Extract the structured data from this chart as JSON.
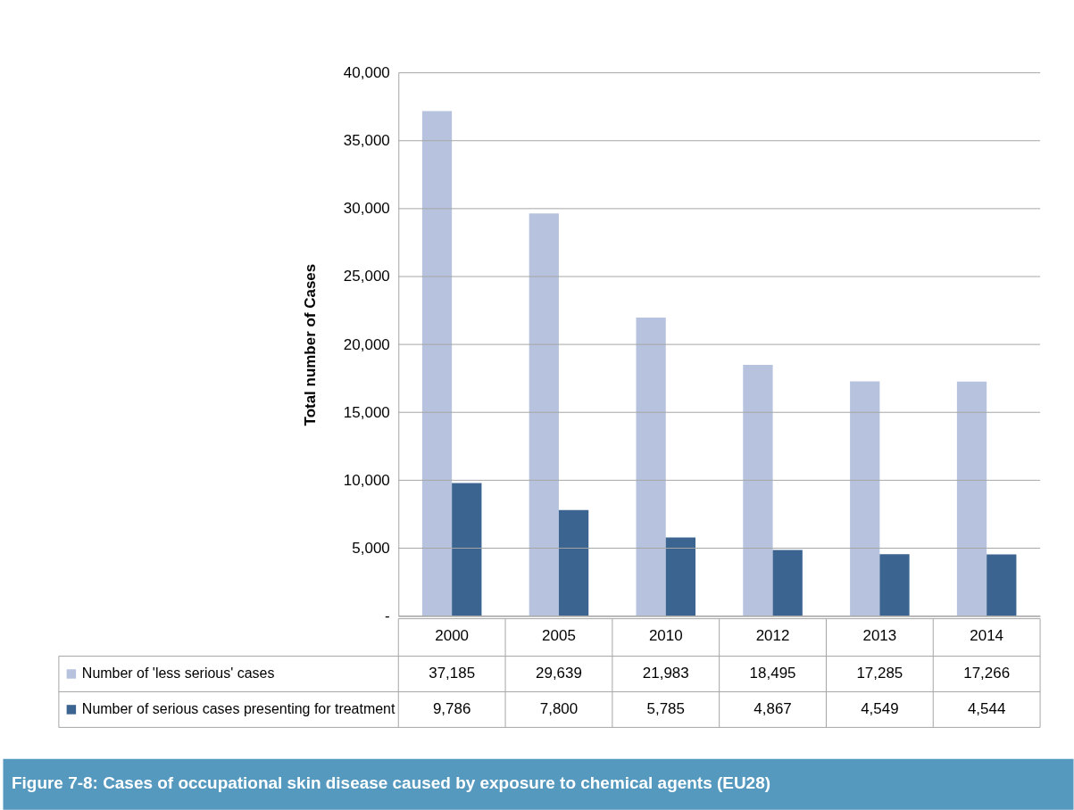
{
  "chart_data": {
    "type": "bar",
    "title": "Figure 7-8: Cases of occupational skin disease caused by exposure to chemical agents (EU28)",
    "ylabel": "Total number of Cases",
    "categories": [
      "2000",
      "2005",
      "2010",
      "2012",
      "2013",
      "2014"
    ],
    "series": [
      {
        "name": "Number of 'less serious' cases",
        "color": "#b7c3de",
        "values": [
          37185,
          29639,
          21983,
          18495,
          17285,
          17266
        ],
        "value_labels": [
          "37,185",
          "29,639",
          "21,983",
          "18,495",
          "17,285",
          "17,266"
        ]
      },
      {
        "name": "Number of serious cases presenting for treatment",
        "color": "#3b6491",
        "values": [
          9786,
          7800,
          5785,
          4867,
          4549,
          4544
        ],
        "value_labels": [
          "9,786",
          "7,800",
          "5,785",
          "4,867",
          "4,549",
          "4,544"
        ]
      }
    ],
    "ylim": [
      0,
      40000
    ],
    "yticks": [
      {
        "value": 0,
        "label": "-"
      },
      {
        "value": 5000,
        "label": "5,000"
      },
      {
        "value": 10000,
        "label": "10,000"
      },
      {
        "value": 15000,
        "label": "15,000"
      },
      {
        "value": 20000,
        "label": "20,000"
      },
      {
        "value": 25000,
        "label": "25,000"
      },
      {
        "value": 30000,
        "label": "30,000"
      },
      {
        "value": 35000,
        "label": "35,000"
      },
      {
        "value": 40000,
        "label": "40,000"
      }
    ],
    "grid": "y",
    "legend": "bottom"
  }
}
